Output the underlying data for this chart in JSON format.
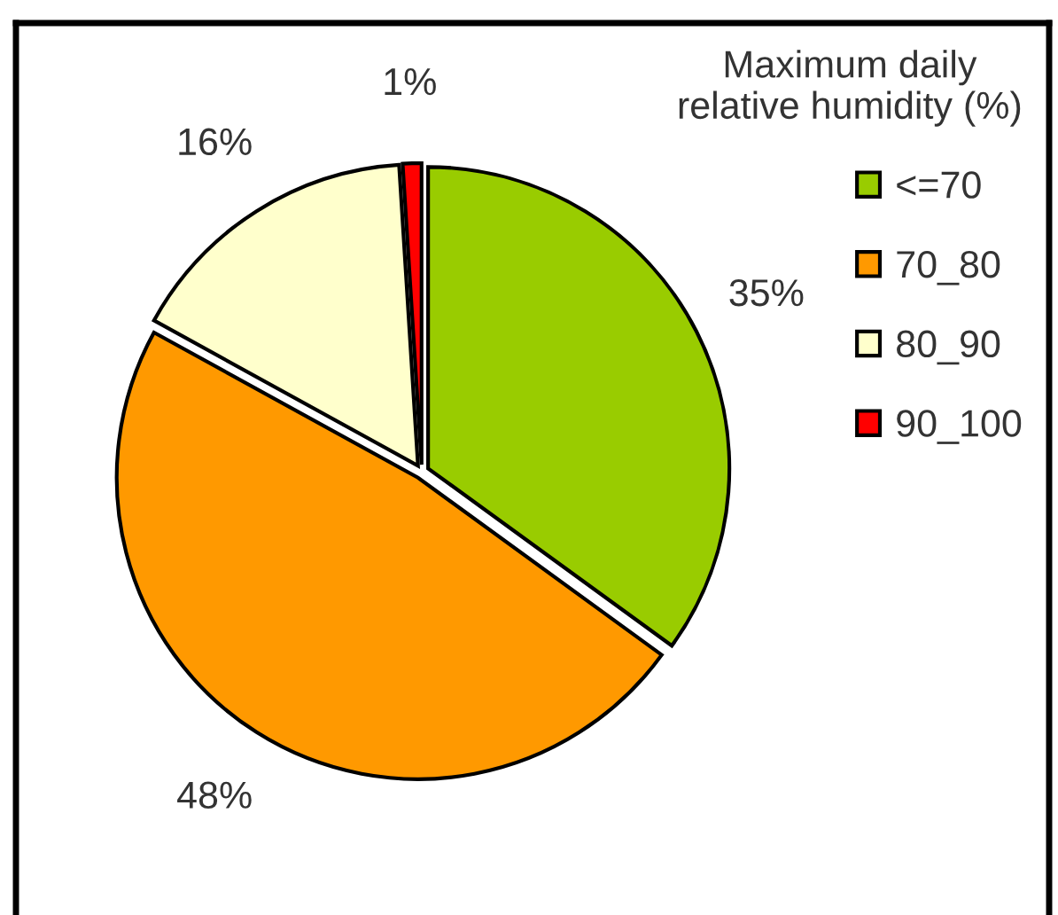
{
  "chart_data": {
    "type": "pie",
    "legend_title": "Maximum daily\nrelative humidity (%)",
    "categories": [
      "<=70",
      "70_80",
      "80_90",
      "90_100"
    ],
    "values": [
      35,
      48,
      16,
      1
    ],
    "value_labels": [
      "35%",
      "48%",
      "16%",
      "1%"
    ],
    "colors": [
      "#99cc00",
      "#ff9900",
      "#ffffcc",
      "#ff0000"
    ],
    "legend": "top right"
  }
}
